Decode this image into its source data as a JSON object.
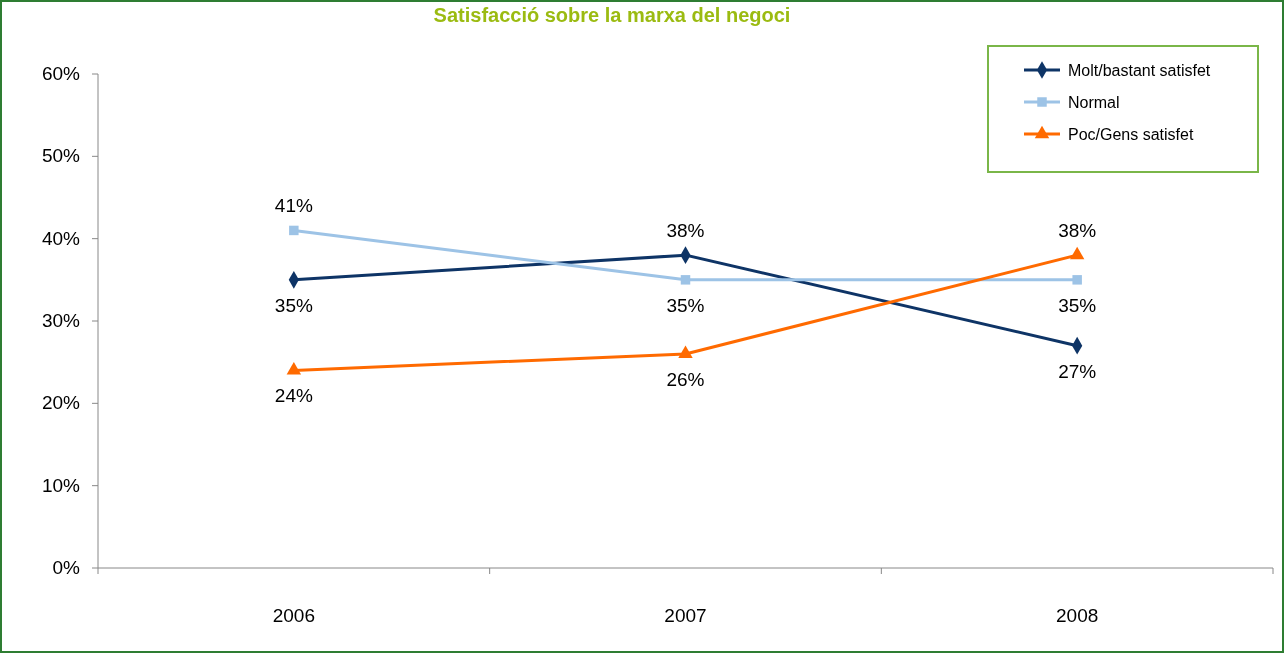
{
  "chart_data": {
    "type": "line",
    "title": "Satisfacció sobre la marxa del negoci",
    "categories": [
      "2006",
      "2007",
      "2008"
    ],
    "series": [
      {
        "name": "Molt/bastant satisfet",
        "color": "#0e3466",
        "values": [
          35,
          38,
          27
        ],
        "value_labels": [
          "35%",
          "38%",
          "27%"
        ],
        "marker": "diamond"
      },
      {
        "name": "Normal",
        "color": "#9dc3e6",
        "values": [
          41,
          35,
          35
        ],
        "value_labels": [
          "41%",
          "35%",
          "35%"
        ],
        "marker": "square"
      },
      {
        "name": "Poc/Gens satisfet",
        "color": "#ff6a00",
        "values": [
          24,
          26,
          38
        ],
        "value_labels": [
          "24%",
          "26%",
          "38%"
        ],
        "marker": "triangle"
      }
    ],
    "ylim": [
      0,
      60
    ],
    "yticks": [
      {
        "value": 0,
        "label": "0%"
      },
      {
        "value": 10,
        "label": "10%"
      },
      {
        "value": 20,
        "label": "20%"
      },
      {
        "value": 30,
        "label": "30%"
      },
      {
        "value": 40,
        "label": "40%"
      },
      {
        "value": 50,
        "label": "50%"
      },
      {
        "value": 60,
        "label": "60%"
      }
    ],
    "legend": "top right"
  }
}
